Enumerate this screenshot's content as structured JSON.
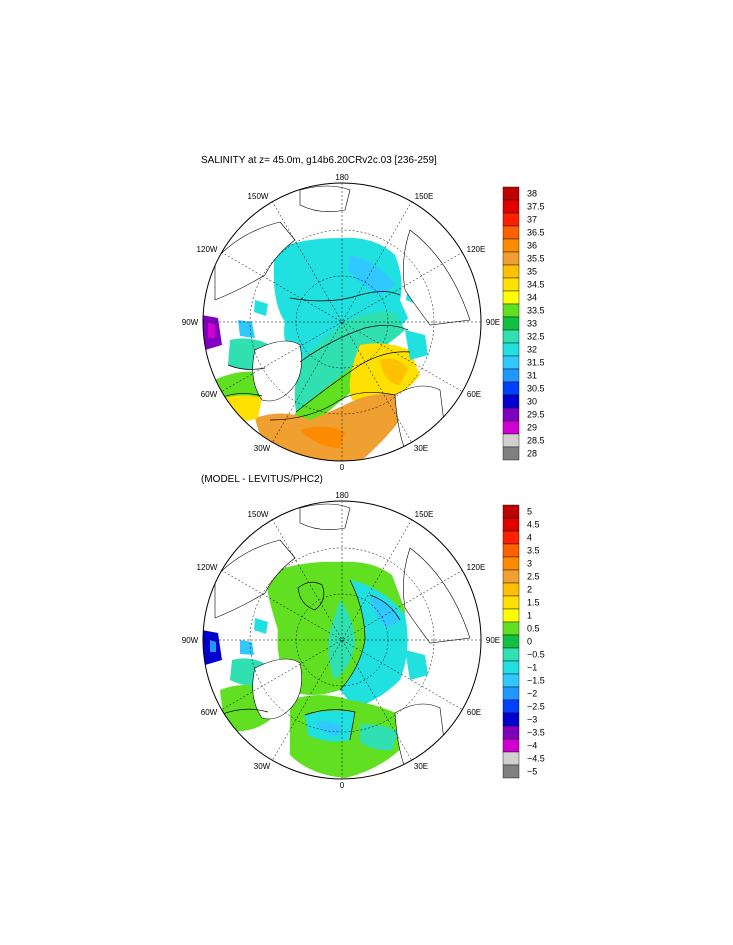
{
  "panels": [
    {
      "title": "SALINITY at z=  45.0m, g14b6.20CRv2c.03 [236-259]",
      "lon_labels": {
        "top": "180",
        "top_left": "150W",
        "top_right": "150E",
        "left_upper": "120W",
        "right_upper": "120E",
        "left": "90W",
        "right": "90E",
        "left_lower": "60W",
        "right_lower": "60E",
        "bottom_left": "30W",
        "bottom_right": "30E",
        "bottom": "0"
      },
      "colorbar": {
        "labels": [
          "38",
          "37.5",
          "37",
          "36.5",
          "36",
          "35.5",
          "35",
          "34.5",
          "34",
          "33.5",
          "33",
          "32.5",
          "32",
          "31.5",
          "31",
          "30.5",
          "30",
          "29.5",
          "29",
          "28.5",
          "28"
        ],
        "colors": [
          "#c00000",
          "#e00000",
          "#ff2000",
          "#ff6000",
          "#ff8c00",
          "#f0a030",
          "#ffc000",
          "#ffe000",
          "#ffff00",
          "#60e020",
          "#10c040",
          "#30e0b0",
          "#20e0e0",
          "#30c8ff",
          "#2098ff",
          "#0040ff",
          "#0000d0",
          "#8000c0",
          "#d000d0",
          "#d0d0d0",
          "#808080"
        ]
      }
    },
    {
      "title": "(MODEL - LEVITUS/PHC2)",
      "lon_labels": {
        "top": "180",
        "top_left": "150W",
        "top_right": "150E",
        "left_upper": "120W",
        "right_upper": "120E",
        "left": "90W",
        "right": "90E",
        "left_lower": "60W",
        "right_lower": "60E",
        "bottom_left": "30W",
        "bottom_right": "30E",
        "bottom": "0"
      },
      "colorbar": {
        "labels": [
          "5",
          "4.5",
          "4",
          "3.5",
          "3",
          "2.5",
          "2",
          "1.5",
          "1",
          "0.5",
          "0",
          "−0.5",
          "−1",
          "−1.5",
          "−2",
          "−2.5",
          "−3",
          "−3.5",
          "−4",
          "−4.5",
          "−5"
        ],
        "colors": [
          "#c00000",
          "#e00000",
          "#ff2000",
          "#ff6000",
          "#ff8c00",
          "#f0a030",
          "#ffc000",
          "#ffe000",
          "#ffff00",
          "#60e020",
          "#10c040",
          "#30e0b0",
          "#20e0e0",
          "#30c8ff",
          "#2098ff",
          "#0040ff",
          "#0000d0",
          "#8000c0",
          "#d000d0",
          "#d0d0d0",
          "#808080"
        ]
      }
    }
  ],
  "colors": {
    "land": "#ffffff",
    "ocean_fresh": "#20e0e0",
    "ocean_mid": "#30e0b0",
    "ocean_green": "#60e020",
    "ocean_yellow": "#ffe000",
    "ocean_orange": "#f0a030",
    "ocean_blue": "#30c8ff",
    "ocean_purple": "#8000c0",
    "ocean_navy": "#0000d0"
  }
}
